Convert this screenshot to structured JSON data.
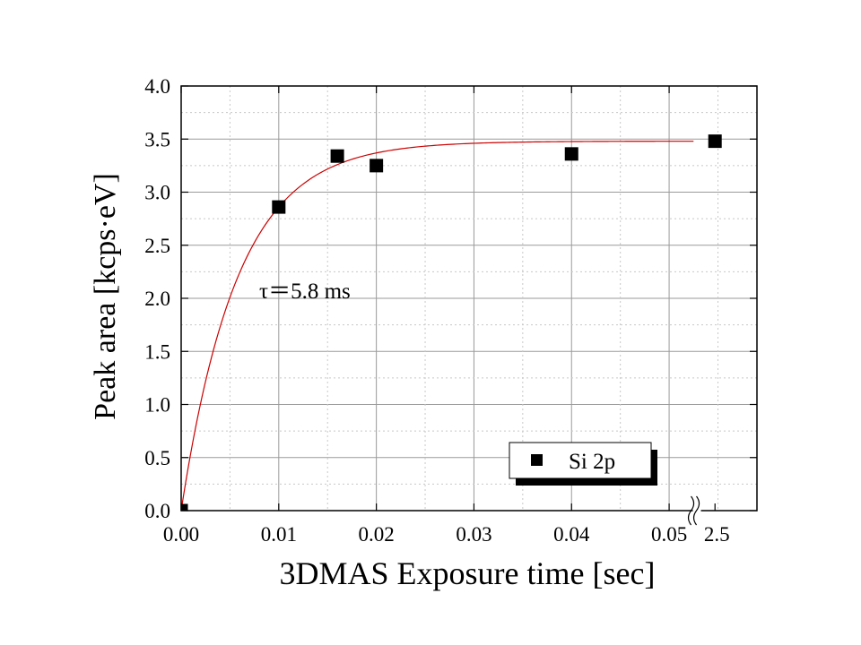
{
  "chart_data": {
    "type": "scatter",
    "title": "",
    "xlabel": "3DMAS Exposure time [sec]",
    "ylabel": "Peak area [kcps·eV]",
    "xlim": [
      0,
      0.059
    ],
    "ylim": [
      0,
      4.0
    ],
    "x_ticks": [
      "0.00",
      "0.01",
      "0.02",
      "0.03",
      "0.04",
      "0.05"
    ],
    "x_break_tick": {
      "label": "2.5",
      "x": 0.0547
    },
    "y_ticks": [
      "0.0",
      "0.5",
      "1.0",
      "1.5",
      "2.0",
      "2.5",
      "3.0",
      "3.5",
      "4.0"
    ],
    "grid": true,
    "legend_position": "bottom-right",
    "series": [
      {
        "name": "Si 2p",
        "marker": "square",
        "color": "#000000",
        "points": [
          {
            "x": 0.0,
            "y": 0.0,
            "label": "0"
          },
          {
            "x": 0.01,
            "y": 2.86,
            "label": "0.010"
          },
          {
            "x": 0.016,
            "y": 3.34,
            "label": "0.016"
          },
          {
            "x": 0.02,
            "y": 3.25,
            "label": "0.020"
          },
          {
            "x": 0.04,
            "y": 3.36,
            "label": "0.040"
          },
          {
            "x": 0.0547,
            "y": 3.48,
            "label": "2.5"
          }
        ]
      }
    ],
    "fit": {
      "type": "exponential-saturation",
      "color": "#cc0000",
      "ymax": 3.48,
      "tau": 0.0058,
      "x_end": 0.0525
    },
    "annotation": "τ＝5.8 ms"
  }
}
